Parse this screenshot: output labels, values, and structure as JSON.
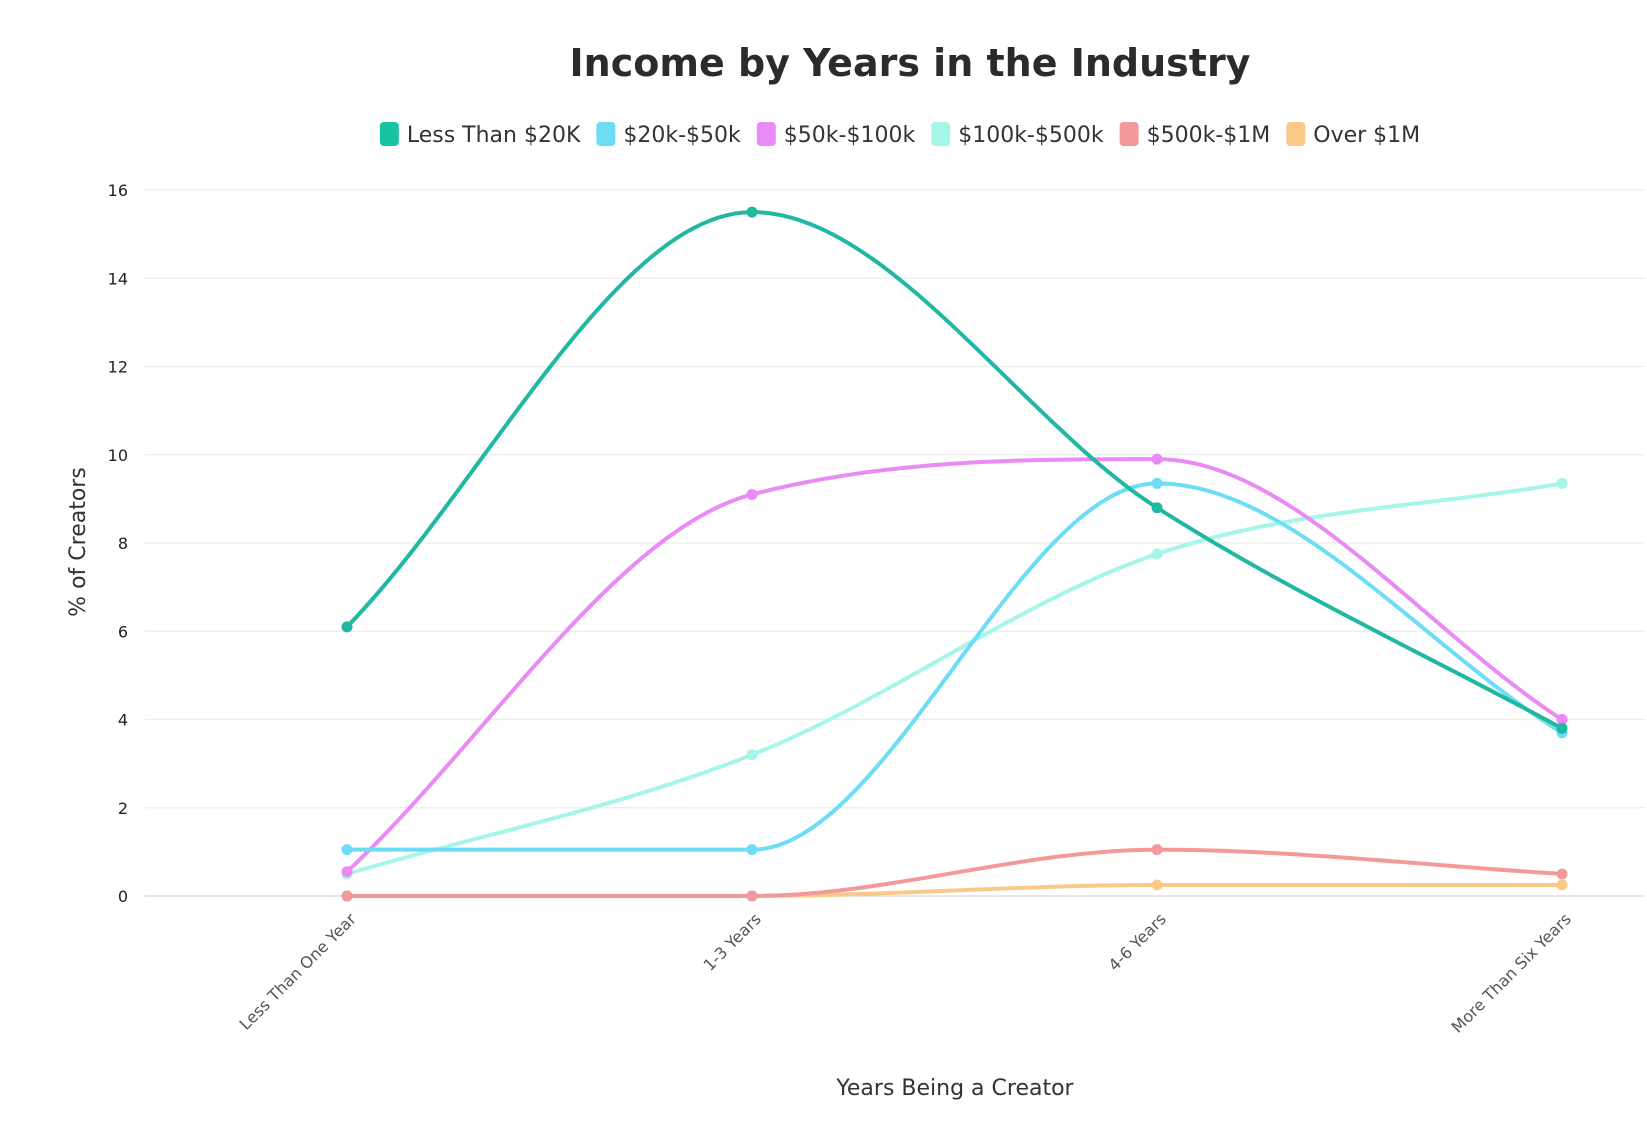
{
  "chart_data": {
    "type": "line",
    "title": "Income by Years in the Industry",
    "xlabel": "Years Being a Creator",
    "ylabel": "% of Creators",
    "categories": [
      "Less Than One Year",
      "1-3 Years",
      "4-6 Years",
      "More Than Six Years"
    ],
    "ylim": [
      0,
      16
    ],
    "yticks": [
      0,
      2,
      4,
      6,
      8,
      10,
      12,
      14,
      16
    ],
    "grid": true,
    "legend_position": "top",
    "smooth": true,
    "series": [
      {
        "name": "Less Than $20K",
        "color": "#17c3a0",
        "line_color": "#20b8a0",
        "values": [
          6.1,
          15.5,
          8.8,
          3.8
        ]
      },
      {
        "name": "$20k-$50k",
        "color": "#6ddcf5",
        "line_color": "#6ddcf5",
        "values": [
          1.05,
          1.05,
          9.35,
          3.7
        ]
      },
      {
        "name": "$50k-$100k",
        "color": "#e98bf5",
        "line_color": "#e98bf5",
        "values": [
          0.55,
          9.1,
          9.9,
          4.0
        ]
      },
      {
        "name": "$100k-$500k",
        "color": "#a6f5e9",
        "line_color": "#a6f5e9",
        "values": [
          0.5,
          3.2,
          7.75,
          9.35
        ]
      },
      {
        "name": "$500k-$1M",
        "color": "#f29a9a",
        "line_color": "#f29a9a",
        "values": [
          0,
          0,
          1.05,
          0.5
        ]
      },
      {
        "name": "Over $1M",
        "color": "#f9c98a",
        "line_color": "#f9c98a",
        "values": [
          0,
          0,
          0.25,
          0.25
        ]
      }
    ]
  }
}
